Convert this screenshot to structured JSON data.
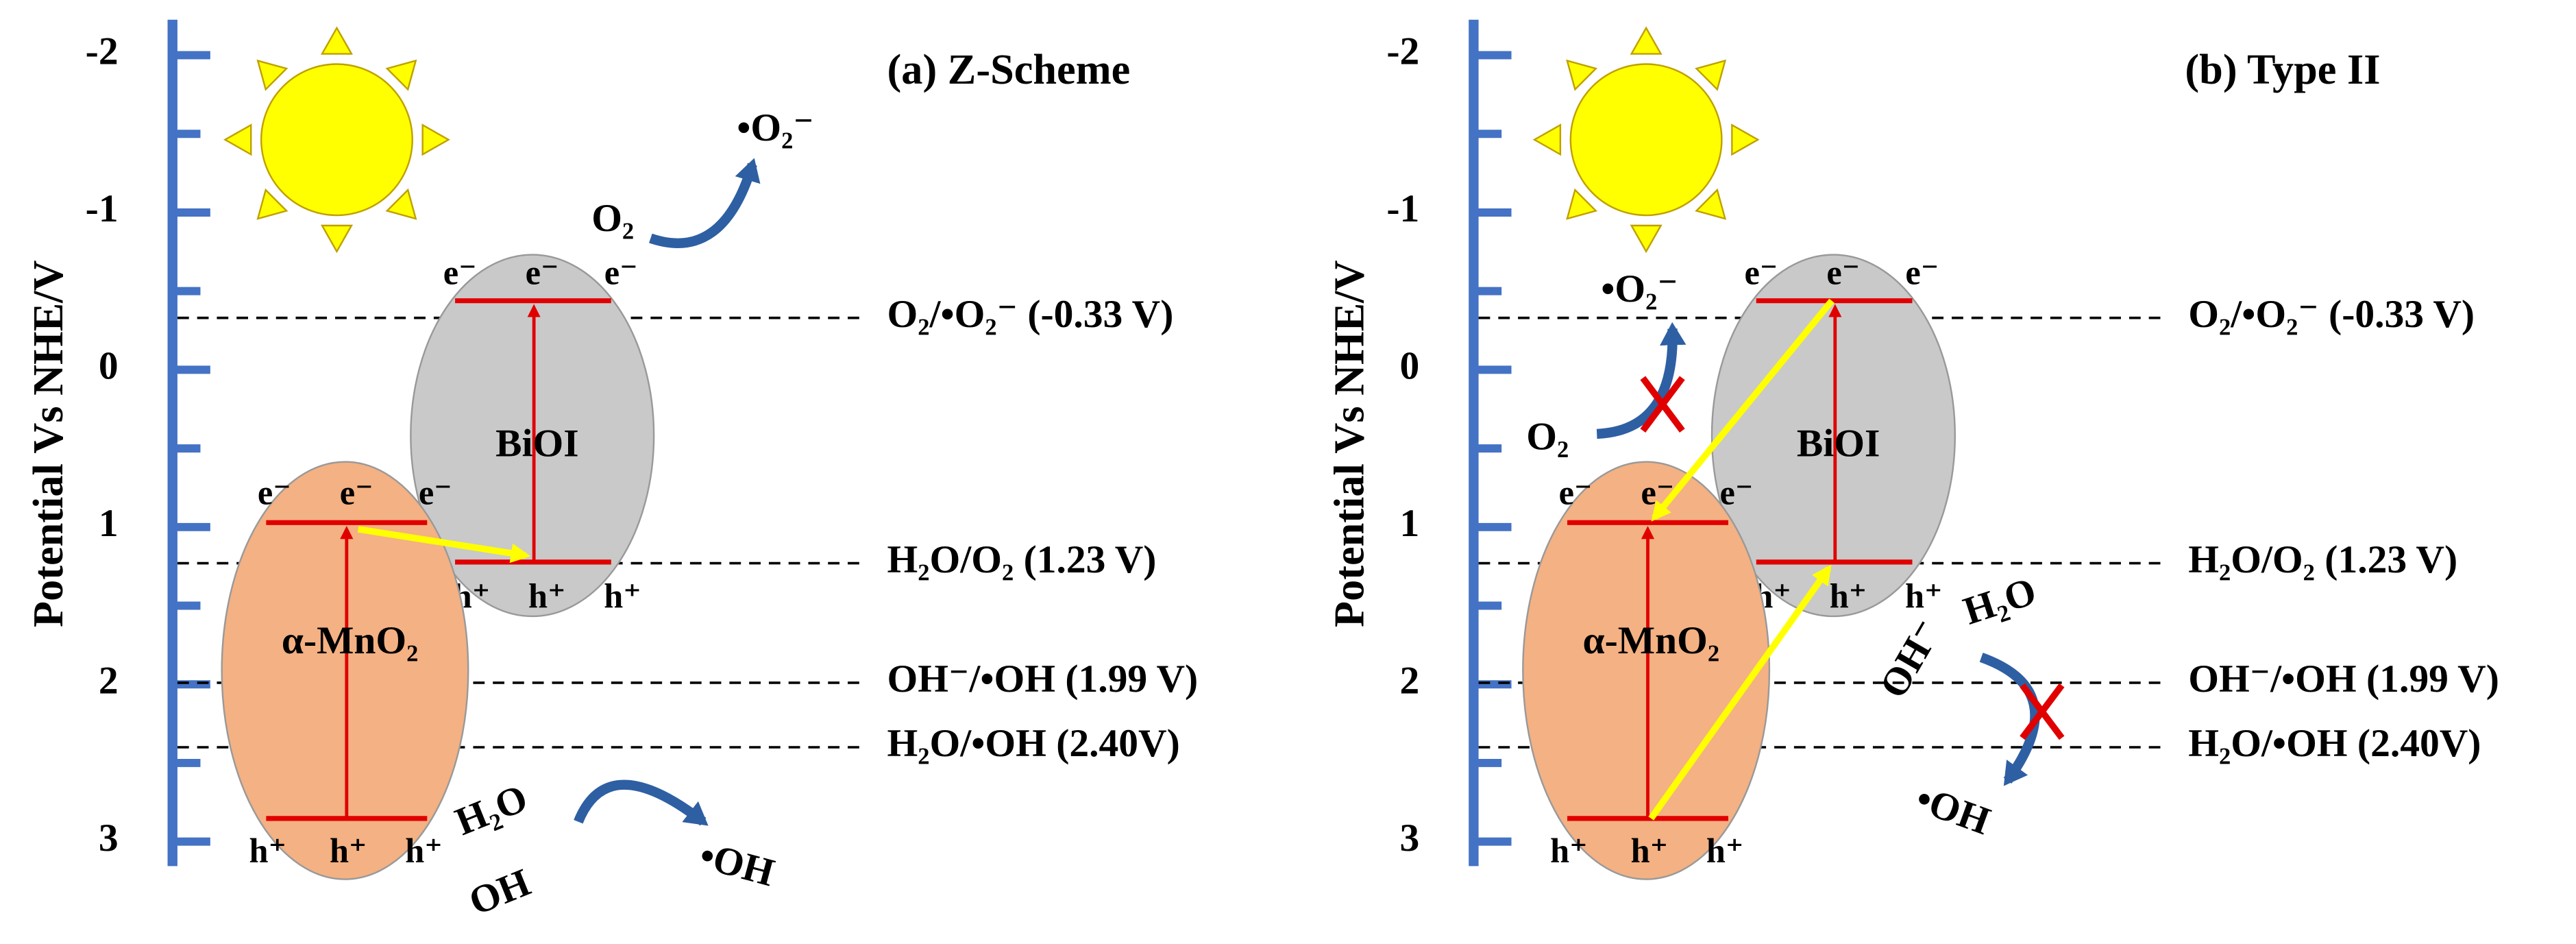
{
  "panels": [
    {
      "title": "(a) Z-Scheme",
      "axis": {
        "label": "Potential Vs NHE/V",
        "ticks": [
          -2,
          -1,
          0,
          1,
          2,
          3
        ]
      },
      "levels": [
        {
          "value": -0.33,
          "label": "O₂/•O₂⁻ (-0.33 V)"
        },
        {
          "value": 1.23,
          "label": "H₂O/O₂ (1.23 V)"
        },
        {
          "value": 1.99,
          "label": "OH⁻/•OH (1.99 V)"
        },
        {
          "value": 2.4,
          "label": "H₂O/•OH (2.40V)"
        }
      ],
      "semiconductors": [
        {
          "name": "BiOI",
          "cb": [
            "e⁻",
            "e⁻",
            "e⁻"
          ],
          "vb": [
            "h⁺",
            "h⁺",
            "h⁺"
          ]
        },
        {
          "name": "α-MnO₂",
          "cb": [
            "e⁻",
            "e⁻",
            "e⁻"
          ],
          "vb": [
            "h⁺",
            "h⁺",
            "h⁺"
          ]
        }
      ],
      "species": {
        "o2": "O₂",
        "superoxide": "•O₂⁻",
        "h2o": "H₂O",
        "oh": "OH",
        "hydroxyl": "•OH"
      }
    },
    {
      "title": "(b) Type II",
      "axis": {
        "label": "Potential Vs NHE/V",
        "ticks": [
          -2,
          -1,
          0,
          1,
          2,
          3
        ]
      },
      "levels": [
        {
          "value": -0.33,
          "label": "O₂/•O₂⁻ (-0.33 V)"
        },
        {
          "value": 1.23,
          "label": "H₂O/O₂ (1.23 V)"
        },
        {
          "value": 1.99,
          "label": "OH⁻/•OH (1.99 V)"
        },
        {
          "value": 2.4,
          "label": "H₂O/•OH (2.40V)"
        }
      ],
      "semiconductors": [
        {
          "name": "BiOI",
          "cb": [
            "e⁻",
            "e⁻",
            "e⁻"
          ],
          "vb": [
            "h⁺",
            "h⁺",
            "h⁺"
          ]
        },
        {
          "name": "α-MnO₂",
          "cb": [
            "e⁻",
            "e⁻",
            "e⁻"
          ],
          "vb": [
            "h⁺",
            "h⁺",
            "h⁺"
          ]
        }
      ],
      "species": {
        "o2": "O₂",
        "superoxide": "•O₂⁻",
        "h2o": "H₂O",
        "oh": "OH⁻",
        "hydroxyl": "•OH"
      }
    }
  ]
}
